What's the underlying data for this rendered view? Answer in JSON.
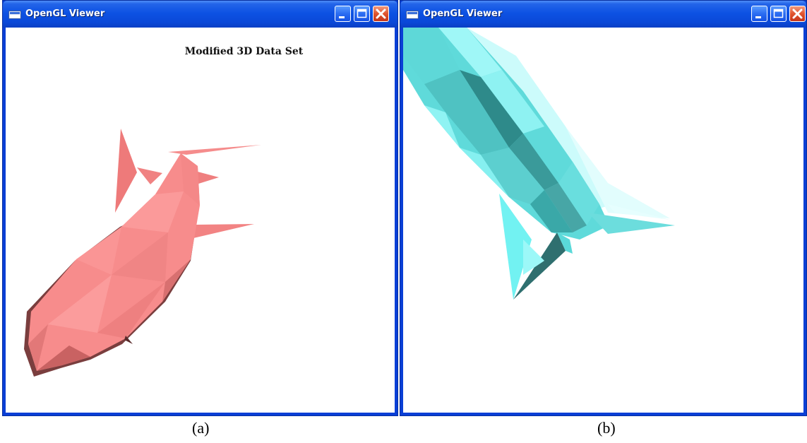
{
  "windows": [
    {
      "title": "OpenGL Viewer",
      "scene_title": "Modified 3D Data Set",
      "model_color": "#f58080",
      "caption": "(a)"
    },
    {
      "title": "OpenGL Viewer",
      "model_color": "#56e3e3",
      "caption": "(b)"
    }
  ],
  "titlebar_buttons": [
    "minimize-icon",
    "maximize-icon",
    "close-icon"
  ],
  "colors": {
    "titlebar_blue": "#0a48d8",
    "close_red": "#e0542e",
    "canvas_bg": "#ffffff"
  }
}
